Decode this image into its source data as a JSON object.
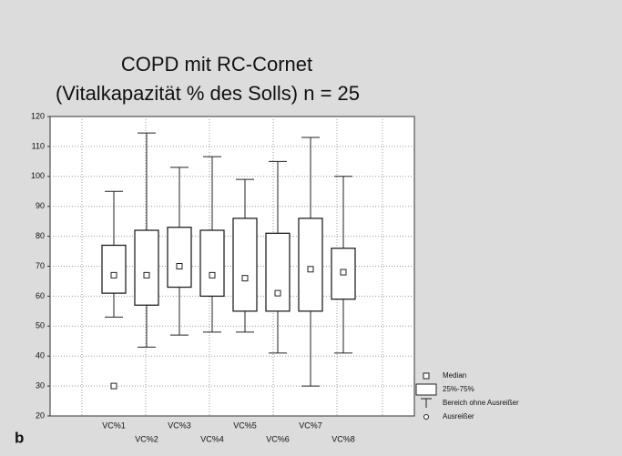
{
  "chart_data": {
    "type": "box",
    "title": "COPD mit RC-Cornet",
    "subtitle": "(Vitalkapazität % des Solls) n = 25",
    "panel_label": "b",
    "categories": [
      "VC%1",
      "VC%2",
      "VC%3",
      "VC%4",
      "VC%5",
      "VC%6",
      "VC%7",
      "VC%8"
    ],
    "min": [
      53,
      43,
      47,
      48,
      48,
      41,
      30,
      41
    ],
    "q1": [
      61,
      57,
      63,
      60,
      55,
      55,
      55,
      59
    ],
    "median": [
      67,
      67,
      70,
      67,
      66,
      61,
      69,
      68
    ],
    "q3": [
      77,
      82,
      83,
      82,
      86,
      81,
      86,
      76
    ],
    "max": [
      95,
      114.5,
      103,
      106.6,
      99,
      105,
      113,
      100
    ],
    "outliers": [
      [
        30
      ],
      [],
      [],
      [],
      [],
      [],
      [],
      []
    ],
    "ylim": [
      20,
      120
    ],
    "yticks": [
      20,
      30,
      40,
      50,
      60,
      70,
      80,
      90,
      100,
      110,
      120
    ],
    "grid": true,
    "legend": [
      "Median",
      "25%-75%",
      "Bereich ohne Ausreißer",
      "Ausreißer"
    ],
    "legend_position": "lower right"
  }
}
